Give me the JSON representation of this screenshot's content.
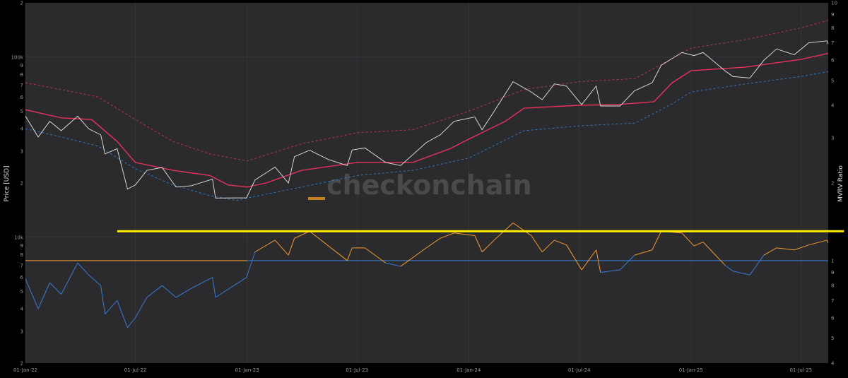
{
  "chart_data": {
    "type": "line",
    "title": "",
    "ylabel_left": "Price [USD]",
    "ylabel_right": "MVRV Ratio",
    "watermark": "checkonchain",
    "x_ticks": [
      "01-Jan-22",
      "01-Jul-22",
      "01-Jan-23",
      "01-Jul-23",
      "01-Jan-24",
      "01-Jul-24",
      "01-Jan-25",
      "01-Jul-25"
    ],
    "x_range": [
      "2022-01-01",
      "2025-08-15"
    ],
    "y_left": {
      "scale": "log",
      "range": [
        2000,
        200000
      ],
      "major_labels": [
        {
          "v": 10000,
          "t": "10k"
        },
        {
          "v": 100000,
          "t": "100k"
        }
      ],
      "minor_labels": [
        {
          "v": 2000,
          "t": "2"
        },
        {
          "v": 3000,
          "t": "3"
        },
        {
          "v": 4000,
          "t": "4"
        },
        {
          "v": 5000,
          "t": "5"
        },
        {
          "v": 6000,
          "t": "6"
        },
        {
          "v": 7000,
          "t": "7"
        },
        {
          "v": 8000,
          "t": "8"
        },
        {
          "v": 9000,
          "t": "9"
        },
        {
          "v": 20000,
          "t": "2"
        },
        {
          "v": 30000,
          "t": "3"
        },
        {
          "v": 40000,
          "t": "4"
        },
        {
          "v": 50000,
          "t": "5"
        },
        {
          "v": 60000,
          "t": "6"
        },
        {
          "v": 70000,
          "t": "7"
        },
        {
          "v": 80000,
          "t": "8"
        },
        {
          "v": 90000,
          "t": "9"
        },
        {
          "v": 200000,
          "t": "2"
        }
      ]
    },
    "y_right": {
      "scale": "log",
      "range": [
        0.4,
        10
      ],
      "labels": [
        {
          "v": 0.4,
          "t": "4"
        },
        {
          "v": 0.5,
          "t": "5"
        },
        {
          "v": 0.6,
          "t": "6"
        },
        {
          "v": 0.7,
          "t": "7"
        },
        {
          "v": 0.8,
          "t": "8"
        },
        {
          "v": 0.9,
          "t": "9"
        },
        {
          "v": 1,
          "t": "1"
        },
        {
          "v": 2,
          "t": "2"
        },
        {
          "v": 3,
          "t": "3"
        },
        {
          "v": 4,
          "t": "4"
        },
        {
          "v": 5,
          "t": "5"
        },
        {
          "v": 6,
          "t": "6"
        },
        {
          "v": 7,
          "t": "7"
        },
        {
          "v": 8,
          "t": "8"
        },
        {
          "v": 9,
          "t": "9"
        },
        {
          "v": 10,
          "t": "10"
        }
      ]
    },
    "colors": {
      "background": "#2b2b2e",
      "grid": "#3a3a3d",
      "price": "#e6e6e6",
      "realized_price": "#e8325a",
      "upper_band": "#c8364e",
      "lower_band": "#2f7fd0",
      "mvrv_above_one": "#f29a2e",
      "mvrv_below_one": "#3a7bd5",
      "mvrv_baseline_left": "#f29a2e",
      "mvrv_baseline_right": "#3a7bd5",
      "resistance_line": "#ffee00",
      "watermark_bar": "#c8801a"
    },
    "series": [
      {
        "key": "price",
        "points": [
          [
            "2022-01-01",
            47000
          ],
          [
            "2022-01-22",
            36000
          ],
          [
            "2022-02-10",
            44000
          ],
          [
            "2022-03-01",
            39000
          ],
          [
            "2022-03-28",
            47000
          ],
          [
            "2022-04-15",
            40000
          ],
          [
            "2022-05-05",
            37000
          ],
          [
            "2022-05-12",
            29000
          ],
          [
            "2022-06-01",
            31000
          ],
          [
            "2022-06-18",
            18500
          ],
          [
            "2022-07-01",
            19500
          ],
          [
            "2022-07-20",
            23500
          ],
          [
            "2022-08-14",
            24400
          ],
          [
            "2022-09-06",
            19000
          ],
          [
            "2022-10-01",
            19300
          ],
          [
            "2022-11-05",
            21000
          ],
          [
            "2022-11-10",
            16500
          ],
          [
            "2022-12-31",
            16550
          ],
          [
            "2023-01-14",
            20800
          ],
          [
            "2023-02-16",
            24500
          ],
          [
            "2023-03-10",
            20000
          ],
          [
            "2023-03-20",
            28000
          ],
          [
            "2023-04-14",
            30400
          ],
          [
            "2023-05-15",
            27000
          ],
          [
            "2023-06-15",
            25000
          ],
          [
            "2023-06-23",
            30500
          ],
          [
            "2023-07-14",
            31300
          ],
          [
            "2023-08-17",
            26000
          ],
          [
            "2023-09-11",
            25000
          ],
          [
            "2023-10-23",
            33500
          ],
          [
            "2023-11-15",
            37000
          ],
          [
            "2023-12-08",
            44000
          ],
          [
            "2024-01-11",
            46500
          ],
          [
            "2024-01-23",
            39500
          ],
          [
            "2024-02-15",
            52000
          ],
          [
            "2024-03-14",
            73000
          ],
          [
            "2024-04-13",
            64000
          ],
          [
            "2024-05-01",
            58000
          ],
          [
            "2024-05-21",
            71000
          ],
          [
            "2024-06-10",
            69000
          ],
          [
            "2024-07-05",
            54500
          ],
          [
            "2024-07-29",
            69000
          ],
          [
            "2024-08-05",
            53500
          ],
          [
            "2024-09-06",
            53500
          ],
          [
            "2024-09-30",
            65000
          ],
          [
            "2024-10-29",
            72000
          ],
          [
            "2024-11-13",
            90000
          ],
          [
            "2024-12-17",
            106000
          ],
          [
            "2025-01-06",
            102000
          ],
          [
            "2025-01-21",
            106000
          ],
          [
            "2025-02-26",
            84000
          ],
          [
            "2025-03-11",
            78000
          ],
          [
            "2025-04-08",
            76500
          ],
          [
            "2025-05-01",
            96000
          ],
          [
            "2025-05-22",
            111000
          ],
          [
            "2025-06-20",
            103000
          ],
          [
            "2025-07-14",
            120000
          ],
          [
            "2025-08-13",
            123000
          ],
          [
            "2025-08-15",
            118000
          ]
        ]
      },
      {
        "key": "realized_price",
        "points": [
          [
            "2022-01-01",
            51000
          ],
          [
            "2022-03-01",
            46000
          ],
          [
            "2022-04-20",
            45000
          ],
          [
            "2022-06-01",
            34000
          ],
          [
            "2022-07-01",
            26000
          ],
          [
            "2022-09-01",
            23500
          ],
          [
            "2022-11-01",
            22000
          ],
          [
            "2022-12-01",
            19500
          ],
          [
            "2023-01-01",
            19000
          ],
          [
            "2023-02-01",
            20000
          ],
          [
            "2023-04-01",
            23500
          ],
          [
            "2023-07-01",
            26000
          ],
          [
            "2023-10-01",
            26000
          ],
          [
            "2023-12-01",
            31000
          ],
          [
            "2024-01-01",
            35000
          ],
          [
            "2024-03-01",
            44000
          ],
          [
            "2024-04-01",
            52000
          ],
          [
            "2024-07-01",
            54000
          ],
          [
            "2024-09-01",
            54500
          ],
          [
            "2024-11-01",
            56500
          ],
          [
            "2024-12-01",
            72000
          ],
          [
            "2025-01-01",
            84000
          ],
          [
            "2025-04-01",
            88000
          ],
          [
            "2025-07-01",
            97000
          ],
          [
            "2025-08-15",
            105000
          ]
        ]
      },
      {
        "key": "upper_band",
        "points": [
          [
            "2022-01-01",
            72000
          ],
          [
            "2022-03-01",
            66000
          ],
          [
            "2022-05-01",
            60000
          ],
          [
            "2022-07-01",
            45000
          ],
          [
            "2022-09-01",
            34000
          ],
          [
            "2022-11-01",
            29000
          ],
          [
            "2023-01-01",
            26500
          ],
          [
            "2023-04-01",
            33000
          ],
          [
            "2023-07-01",
            38000
          ],
          [
            "2023-10-01",
            39500
          ],
          [
            "2024-01-01",
            50000
          ],
          [
            "2024-04-01",
            66000
          ],
          [
            "2024-07-01",
            73000
          ],
          [
            "2024-10-01",
            76000
          ],
          [
            "2025-01-01",
            112000
          ],
          [
            "2025-04-01",
            125000
          ],
          [
            "2025-07-01",
            145000
          ],
          [
            "2025-08-15",
            160000
          ]
        ]
      },
      {
        "key": "lower_band",
        "points": [
          [
            "2022-01-01",
            40000
          ],
          [
            "2022-03-01",
            36000
          ],
          [
            "2022-05-01",
            32000
          ],
          [
            "2022-07-01",
            24000
          ],
          [
            "2022-09-01",
            19500
          ],
          [
            "2022-11-01",
            17000
          ],
          [
            "2022-12-15",
            16000
          ],
          [
            "2023-01-01",
            16500
          ],
          [
            "2023-04-01",
            19000
          ],
          [
            "2023-07-01",
            22000
          ],
          [
            "2023-10-01",
            23500
          ],
          [
            "2024-01-01",
            27500
          ],
          [
            "2024-04-01",
            39000
          ],
          [
            "2024-07-01",
            41500
          ],
          [
            "2024-10-01",
            43000
          ],
          [
            "2024-12-01",
            55000
          ],
          [
            "2025-01-01",
            64000
          ],
          [
            "2025-04-01",
            71000
          ],
          [
            "2025-07-01",
            78000
          ],
          [
            "2025-08-15",
            83000
          ]
        ]
      },
      {
        "key": "mvrv",
        "points": [
          [
            "2022-01-01",
            0.85
          ],
          [
            "2022-01-22",
            0.65
          ],
          [
            "2022-02-10",
            0.82
          ],
          [
            "2022-03-01",
            0.74
          ],
          [
            "2022-03-28",
            0.98
          ],
          [
            "2022-04-15",
            0.88
          ],
          [
            "2022-05-05",
            0.8
          ],
          [
            "2022-05-12",
            0.62
          ],
          [
            "2022-06-01",
            0.7
          ],
          [
            "2022-06-18",
            0.55
          ],
          [
            "2022-07-01",
            0.6
          ],
          [
            "2022-07-20",
            0.72
          ],
          [
            "2022-08-14",
            0.8
          ],
          [
            "2022-09-06",
            0.72
          ],
          [
            "2022-10-01",
            0.78
          ],
          [
            "2022-11-05",
            0.86
          ],
          [
            "2022-11-10",
            0.72
          ],
          [
            "2022-12-31",
            0.86
          ],
          [
            "2023-01-14",
            1.08
          ],
          [
            "2023-02-16",
            1.2
          ],
          [
            "2023-03-10",
            1.05
          ],
          [
            "2023-03-20",
            1.22
          ],
          [
            "2023-04-14",
            1.3
          ],
          [
            "2023-05-15",
            1.14
          ],
          [
            "2023-06-15",
            1.0
          ],
          [
            "2023-06-23",
            1.12
          ],
          [
            "2023-07-14",
            1.12
          ],
          [
            "2023-08-17",
            0.98
          ],
          [
            "2023-09-11",
            0.95
          ],
          [
            "2023-10-23",
            1.12
          ],
          [
            "2023-11-15",
            1.22
          ],
          [
            "2023-12-08",
            1.28
          ],
          [
            "2024-01-11",
            1.25
          ],
          [
            "2024-01-23",
            1.08
          ],
          [
            "2024-02-15",
            1.22
          ],
          [
            "2024-03-14",
            1.4
          ],
          [
            "2024-04-13",
            1.25
          ],
          [
            "2024-05-01",
            1.08
          ],
          [
            "2024-05-21",
            1.2
          ],
          [
            "2024-06-10",
            1.15
          ],
          [
            "2024-07-05",
            0.92
          ],
          [
            "2024-07-29",
            1.1
          ],
          [
            "2024-08-05",
            0.9
          ],
          [
            "2024-09-06",
            0.92
          ],
          [
            "2024-09-30",
            1.05
          ],
          [
            "2024-10-29",
            1.1
          ],
          [
            "2024-11-13",
            1.3
          ],
          [
            "2024-12-17",
            1.28
          ],
          [
            "2025-01-06",
            1.14
          ],
          [
            "2025-01-21",
            1.18
          ],
          [
            "2025-02-26",
            0.96
          ],
          [
            "2025-03-11",
            0.91
          ],
          [
            "2025-04-08",
            0.88
          ],
          [
            "2025-05-01",
            1.05
          ],
          [
            "2025-05-22",
            1.12
          ],
          [
            "2025-06-20",
            1.1
          ],
          [
            "2025-07-14",
            1.15
          ],
          [
            "2025-08-13",
            1.2
          ],
          [
            "2025-08-15",
            1.17
          ]
        ]
      },
      {
        "key": "mvrv_baseline",
        "value": 1.0,
        "from": "2022-01-01",
        "to": "2025-08-15"
      },
      {
        "key": "resistance_line",
        "value": 1.3,
        "from": "2022-06-01",
        "to": "2025-09-10"
      }
    ]
  }
}
